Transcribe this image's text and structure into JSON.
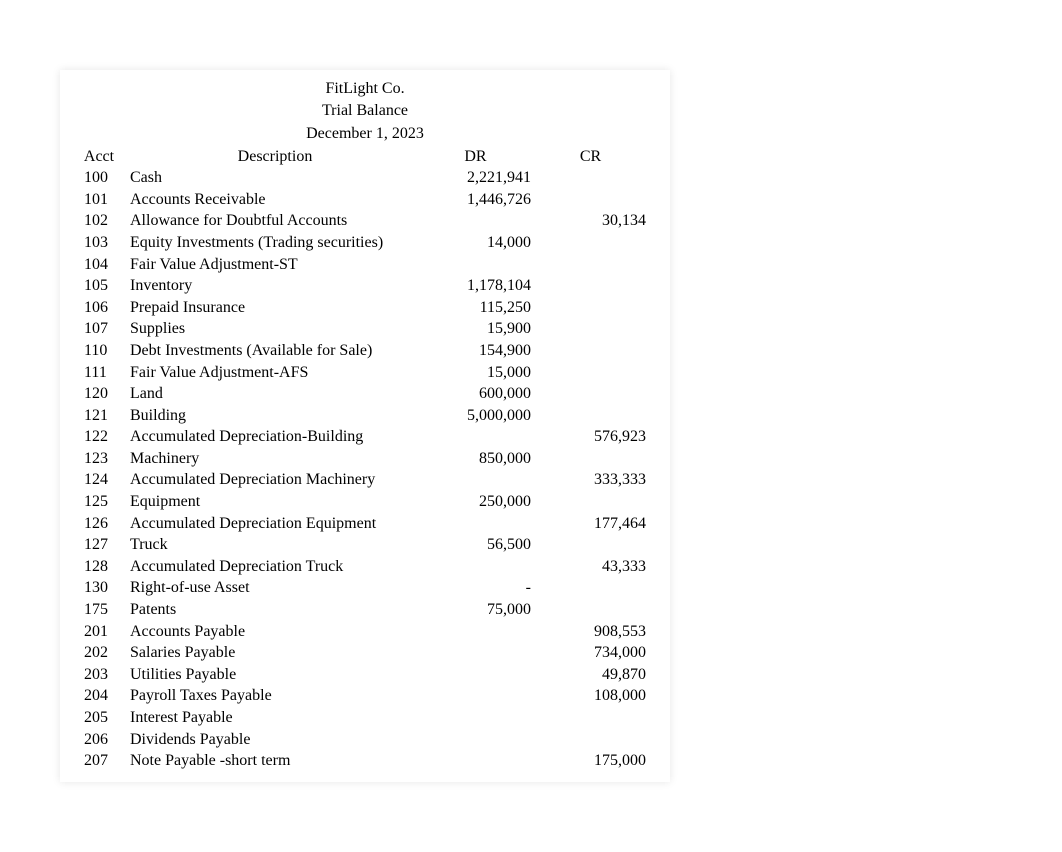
{
  "header": {
    "company": "FitLight Co.",
    "title": "Trial Balance",
    "date": "December 1, 2023"
  },
  "columns": {
    "acct": "Acct",
    "desc": "Description",
    "dr": "DR",
    "cr": "CR"
  },
  "rows": [
    {
      "acct": "100",
      "desc": "Cash",
      "dr": "2,221,941",
      "cr": ""
    },
    {
      "acct": "101",
      "desc": "Accounts Receivable",
      "dr": "1,446,726",
      "cr": ""
    },
    {
      "acct": "102",
      "desc": "Allowance for Doubtful Accounts",
      "dr": "",
      "cr": "30,134"
    },
    {
      "acct": "103",
      "desc": "Equity Investments (Trading securities)",
      "dr": "14,000",
      "cr": ""
    },
    {
      "acct": "104",
      "desc": "Fair Value Adjustment-ST",
      "dr": "",
      "cr": ""
    },
    {
      "acct": "105",
      "desc": "Inventory",
      "dr": "1,178,104",
      "cr": ""
    },
    {
      "acct": "106",
      "desc": "Prepaid Insurance",
      "dr": "115,250",
      "cr": ""
    },
    {
      "acct": "107",
      "desc": "Supplies",
      "dr": "15,900",
      "cr": ""
    },
    {
      "acct": "110",
      "desc": "Debt Investments (Available for Sale)",
      "dr": "154,900",
      "cr": ""
    },
    {
      "acct": "111",
      "desc": "Fair Value Adjustment-AFS",
      "dr": "15,000",
      "cr": ""
    },
    {
      "acct": "120",
      "desc": "Land",
      "dr": "600,000",
      "cr": ""
    },
    {
      "acct": "121",
      "desc": "Building",
      "dr": "5,000,000",
      "cr": ""
    },
    {
      "acct": "122",
      "desc": "Accumulated Depreciation-Building",
      "dr": "",
      "cr": "576,923"
    },
    {
      "acct": "123",
      "desc": "Machinery",
      "dr": "850,000",
      "cr": ""
    },
    {
      "acct": "124",
      "desc": "Accumulated Depreciation Machinery",
      "dr": "",
      "cr": "333,333"
    },
    {
      "acct": "125",
      "desc": "Equipment",
      "dr": "250,000",
      "cr": ""
    },
    {
      "acct": "126",
      "desc": "Accumulated Depreciation Equipment",
      "dr": "",
      "cr": "177,464"
    },
    {
      "acct": "127",
      "desc": "Truck",
      "dr": "56,500",
      "cr": ""
    },
    {
      "acct": "128",
      "desc": "Accumulated Depreciation Truck",
      "dr": "",
      "cr": "43,333"
    },
    {
      "acct": "130",
      "desc": "Right-of-use Asset",
      "dr": "-",
      "cr": ""
    },
    {
      "acct": "175",
      "desc": "Patents",
      "dr": "75,000",
      "cr": ""
    },
    {
      "acct": "201",
      "desc": "Accounts Payable",
      "dr": "",
      "cr": "908,553"
    },
    {
      "acct": "202",
      "desc": "Salaries Payable",
      "dr": "",
      "cr": "734,000"
    },
    {
      "acct": "203",
      "desc": "Utilities Payable",
      "dr": "",
      "cr": "49,870"
    },
    {
      "acct": "204",
      "desc": "Payroll Taxes Payable",
      "dr": "",
      "cr": "108,000"
    },
    {
      "acct": "205",
      "desc": "Interest Payable",
      "dr": "",
      "cr": ""
    },
    {
      "acct": "206",
      "desc": "Dividends Payable",
      "dr": "",
      "cr": ""
    },
    {
      "acct": "207",
      "desc": "Note Payable -short term",
      "dr": "",
      "cr": "175,000"
    }
  ],
  "styling": {
    "font_family": "Times New Roman",
    "font_size": 16,
    "text_color": "#000000",
    "background_color": "#ffffff",
    "container_width": 610,
    "col_widths": {
      "acct": 50,
      "desc": 300,
      "dr": 115,
      "cr": 115
    }
  }
}
